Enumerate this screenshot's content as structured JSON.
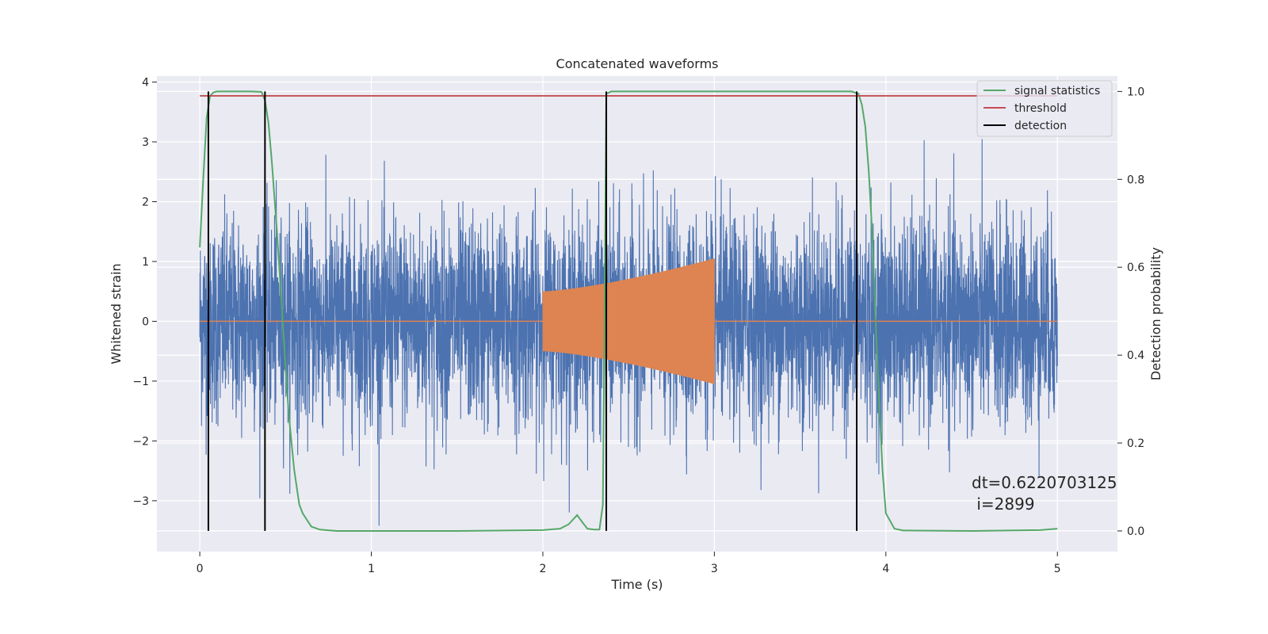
{
  "chart_data": {
    "type": "line",
    "title": "Concatenated waveforms",
    "xlabel": "Time (s)",
    "ylabel": "Whitened strain",
    "y2label": "Detection probability",
    "xlim": [
      -0.25,
      5.35
    ],
    "ylim": [
      -3.85,
      4.1
    ],
    "y2lim": [
      -0.047,
      1.035
    ],
    "xticks": [
      0,
      1,
      2,
      3,
      4,
      5
    ],
    "xtick_labels": [
      "0",
      "1",
      "2",
      "3",
      "4",
      "5"
    ],
    "yticks": [
      -3,
      -2,
      -1,
      0,
      1,
      2,
      3,
      4
    ],
    "ytick_labels": [
      "−3",
      "−2",
      "−1",
      "0",
      "1",
      "2",
      "3",
      "4"
    ],
    "y2ticks": [
      0.0,
      0.2,
      0.4,
      0.6,
      0.8,
      1.0
    ],
    "y2tick_labels": [
      "0.0",
      "0.2",
      "0.4",
      "0.6",
      "0.8",
      "1.0"
    ],
    "grid": true,
    "legend_position": "top-right",
    "series": [
      {
        "name": "",
        "axis": "left",
        "kind": "noise",
        "color": "#4c72b0",
        "x_range": [
          0,
          5
        ],
        "std": 0.85,
        "min": -3.5,
        "max": 3.65
      },
      {
        "name": "",
        "axis": "left",
        "kind": "chirp",
        "color": "#dd8452",
        "x_range": [
          0,
          5
        ],
        "signal_start": 2.0,
        "signal_end": 3.0,
        "amp_start": 0.5,
        "amp_end": 1.05,
        "points": [
          [
            2.0,
            0.5
          ],
          [
            2.5,
            0.68
          ],
          [
            2.8,
            0.85
          ],
          [
            3.0,
            1.05
          ]
        ]
      },
      {
        "name": "signal statistics",
        "axis": "right",
        "color": "#55a868",
        "x": [
          0,
          0.02,
          0.04,
          0.06,
          0.08,
          0.1,
          0.15,
          0.2,
          0.3,
          0.36,
          0.38,
          0.4,
          0.42,
          0.45,
          0.48,
          0.5,
          0.52,
          0.55,
          0.58,
          0.6,
          0.65,
          0.7,
          0.8,
          1.0,
          1.5,
          2.0,
          2.1,
          2.15,
          2.2,
          2.23,
          2.26,
          2.3,
          2.33,
          2.35,
          2.36,
          2.37,
          2.4,
          2.5,
          3.0,
          3.5,
          3.8,
          3.84,
          3.86,
          3.88,
          3.9,
          3.92,
          3.94,
          3.96,
          3.98,
          4.0,
          4.05,
          4.1,
          4.5,
          4.9,
          5.0
        ],
        "y": [
          0.645,
          0.8,
          0.94,
          0.99,
          0.998,
          1.0,
          1.0,
          1.0,
          1.0,
          0.999,
          0.98,
          0.93,
          0.84,
          0.68,
          0.5,
          0.37,
          0.26,
          0.14,
          0.06,
          0.04,
          0.01,
          0.003,
          0.0,
          0.0,
          0.0,
          0.002,
          0.005,
          0.015,
          0.036,
          0.02,
          0.005,
          0.003,
          0.003,
          0.06,
          0.5,
          0.995,
          1.0,
          1.0,
          1.0,
          1.0,
          1.0,
          0.995,
          0.97,
          0.92,
          0.82,
          0.68,
          0.48,
          0.3,
          0.14,
          0.04,
          0.005,
          0.001,
          0.0,
          0.002,
          0.005
        ]
      },
      {
        "name": "threshold",
        "axis": "right",
        "color": "#c44e52",
        "x": [
          0,
          5
        ],
        "y": [
          0.99,
          0.99
        ]
      },
      {
        "name": "detection",
        "axis": "right",
        "color": "#000000",
        "x": [
          0.05,
          0.38,
          2.37,
          3.83
        ],
        "y_range": [
          0.0,
          1.0
        ]
      }
    ],
    "annotation": {
      "lines": [
        "dt=0.6220703125",
        " i=2899"
      ],
      "x": 4.52,
      "y": -2.7
    }
  }
}
